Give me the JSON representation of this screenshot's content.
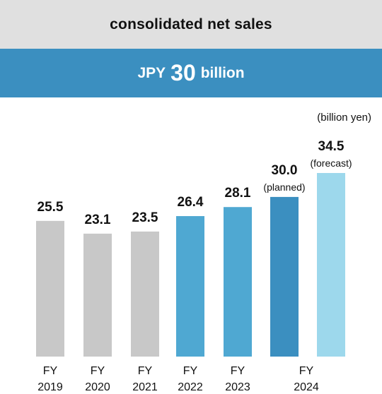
{
  "header": {
    "title": "consolidated net sales",
    "headline_prefix": "JPY",
    "headline_value": "30",
    "headline_suffix": "billion"
  },
  "chart_data": {
    "type": "bar",
    "unit": "(billion yen)",
    "categories": [
      {
        "line1": "FY",
        "line2": "2019"
      },
      {
        "line1": "FY",
        "line2": "2020"
      },
      {
        "line1": "FY",
        "line2": "2021"
      },
      {
        "line1": "FY",
        "line2": "2022"
      },
      {
        "line1": "FY",
        "line2": "2023"
      },
      {
        "line1": "FY",
        "line2": "2024"
      }
    ],
    "bars": [
      {
        "category": 0,
        "value": 25.5,
        "label": "25.5",
        "note": "",
        "color": "#c8c8c8"
      },
      {
        "category": 1,
        "value": 23.1,
        "label": "23.1",
        "note": "",
        "color": "#c8c8c8"
      },
      {
        "category": 2,
        "value": 23.5,
        "label": "23.5",
        "note": "",
        "color": "#c8c8c8"
      },
      {
        "category": 3,
        "value": 26.4,
        "label": "26.4",
        "note": "",
        "color": "#4fa8d2"
      },
      {
        "category": 4,
        "value": 28.1,
        "label": "28.1",
        "note": "",
        "color": "#4fa8d2"
      },
      {
        "category": 5,
        "value": 30.0,
        "label": "30.0",
        "note": "(planned)",
        "color": "#3b8fc0"
      },
      {
        "category": 5,
        "value": 34.5,
        "label": "34.5",
        "note": "(forecast)",
        "color": "#9dd8ec"
      }
    ]
  }
}
